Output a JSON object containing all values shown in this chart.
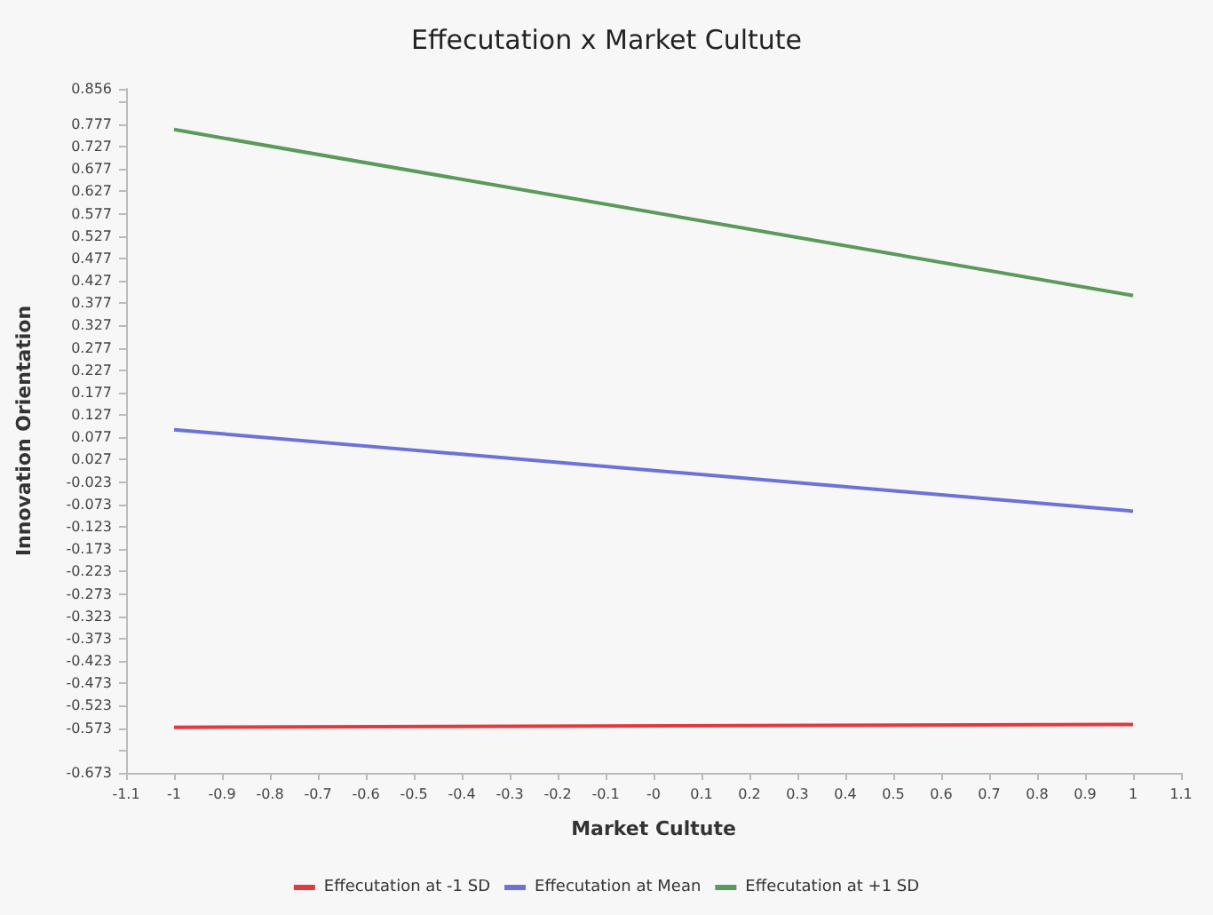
{
  "chart_data": {
    "type": "line",
    "title": "Effecutation x Market Cultute",
    "xlabel": "Market Cultute",
    "ylabel": "Innovation Orientation",
    "x": [
      -1,
      1
    ],
    "series": [
      {
        "name": "Effecutation at -1 SD",
        "color": "#e0393e",
        "values": [
          -0.571,
          -0.565
        ]
      },
      {
        "name": "Effecutation at Mean",
        "color": "#6b72d8",
        "values": [
          0.094,
          -0.088
        ]
      },
      {
        "name": "Effecutation at +1 SD",
        "color": "#5a9a5a",
        "values": [
          0.765,
          0.394
        ]
      }
    ],
    "xlim": [
      -1.1,
      1.1
    ],
    "xticks": [
      -1.1,
      -1,
      -0.9,
      -0.8,
      -0.7,
      -0.6,
      -0.5,
      -0.4,
      -0.3,
      -0.2,
      -0.1,
      {
        "value": 0,
        "label": "-0"
      },
      0.1,
      0.2,
      0.3,
      0.4,
      0.5,
      0.6,
      0.7,
      0.8,
      0.9,
      1,
      1.1
    ],
    "ylim": [
      -0.673,
      0.856
    ],
    "yticks": [
      0.856,
      {
        "value": 0.827,
        "label": null
      },
      0.777,
      0.727,
      0.677,
      0.627,
      0.577,
      0.527,
      0.477,
      0.427,
      0.377,
      0.327,
      0.277,
      0.227,
      0.177,
      0.127,
      0.077,
      0.027,
      -0.023,
      -0.073,
      -0.123,
      -0.173,
      -0.223,
      -0.273,
      -0.323,
      -0.373,
      -0.423,
      -0.473,
      -0.523,
      -0.573,
      {
        "value": -0.623,
        "label": null
      },
      -0.673
    ],
    "grid": false,
    "legend": "bottom",
    "marker": "none",
    "line_style": "solid"
  }
}
